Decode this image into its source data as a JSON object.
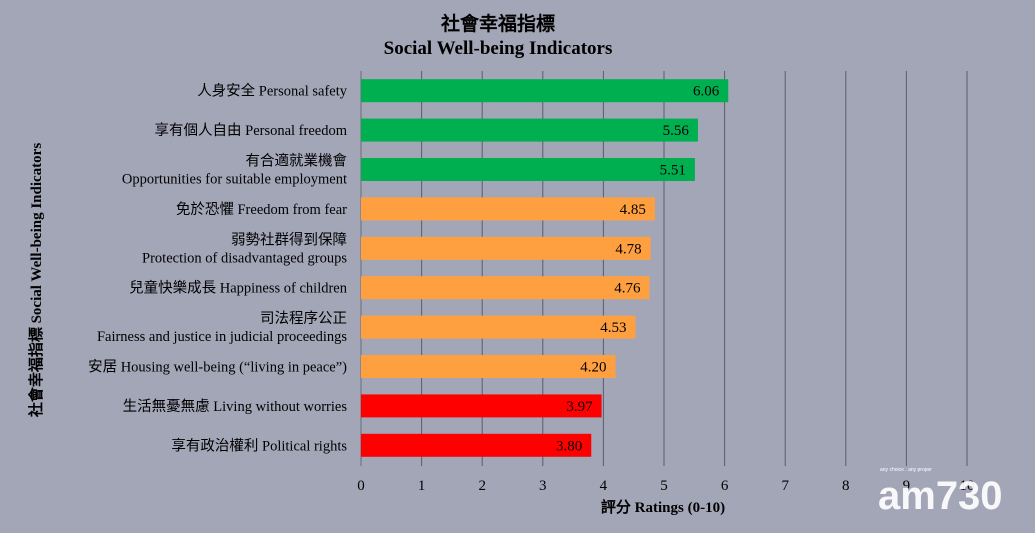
{
  "chart_data": {
    "type": "bar",
    "orientation": "horizontal",
    "title": "社會幸福指標",
    "subtitle": "Social Well-being Indicators",
    "xlabel": "評分 Ratings (0-10)",
    "ylabel": "社會幸福指標 Social Well-being Indicators",
    "xlim": [
      0,
      10
    ],
    "x_ticks": [
      "0",
      "1",
      "2",
      "3",
      "4",
      "5",
      "6",
      "7",
      "8",
      "9",
      "10"
    ],
    "grid": true,
    "categories": [
      {
        "lines": [
          "人身安全 Personal safety"
        ]
      },
      {
        "lines": [
          "享有個人自由 Personal freedom"
        ]
      },
      {
        "lines": [
          "有合適就業機會",
          "Opportunities for suitable employment"
        ]
      },
      {
        "lines": [
          "免於恐懼 Freedom from fear"
        ]
      },
      {
        "lines": [
          "弱勢社群得到保障",
          "Protection of disadvantaged groups"
        ]
      },
      {
        "lines": [
          "兒童快樂成長 Happiness of children"
        ]
      },
      {
        "lines": [
          "司法程序公正",
          "Fairness and justice in judicial proceedings"
        ]
      },
      {
        "lines": [
          "安居 Housing well-being (“living in peace”)"
        ]
      },
      {
        "lines": [
          "生活無憂無慮 Living without worries"
        ]
      },
      {
        "lines": [
          "享有政治權利 Political rights"
        ]
      }
    ],
    "values": [
      6.06,
      5.56,
      5.51,
      4.85,
      4.78,
      4.76,
      4.53,
      4.2,
      3.97,
      3.8
    ],
    "value_labels": [
      "6.06",
      "5.56",
      "5.51",
      "4.85",
      "4.78",
      "4.76",
      "4.53",
      "4.20",
      "3.97",
      "3.80"
    ],
    "bar_colors": [
      "#00b050",
      "#00b050",
      "#00b050",
      "#ffa040",
      "#ffa040",
      "#ffa040",
      "#ffa040",
      "#ffa040",
      "#ff0000",
      "#ff0000"
    ]
  },
  "watermark": {
    "brand": "am730",
    "tagline": "any choice . any proper"
  }
}
